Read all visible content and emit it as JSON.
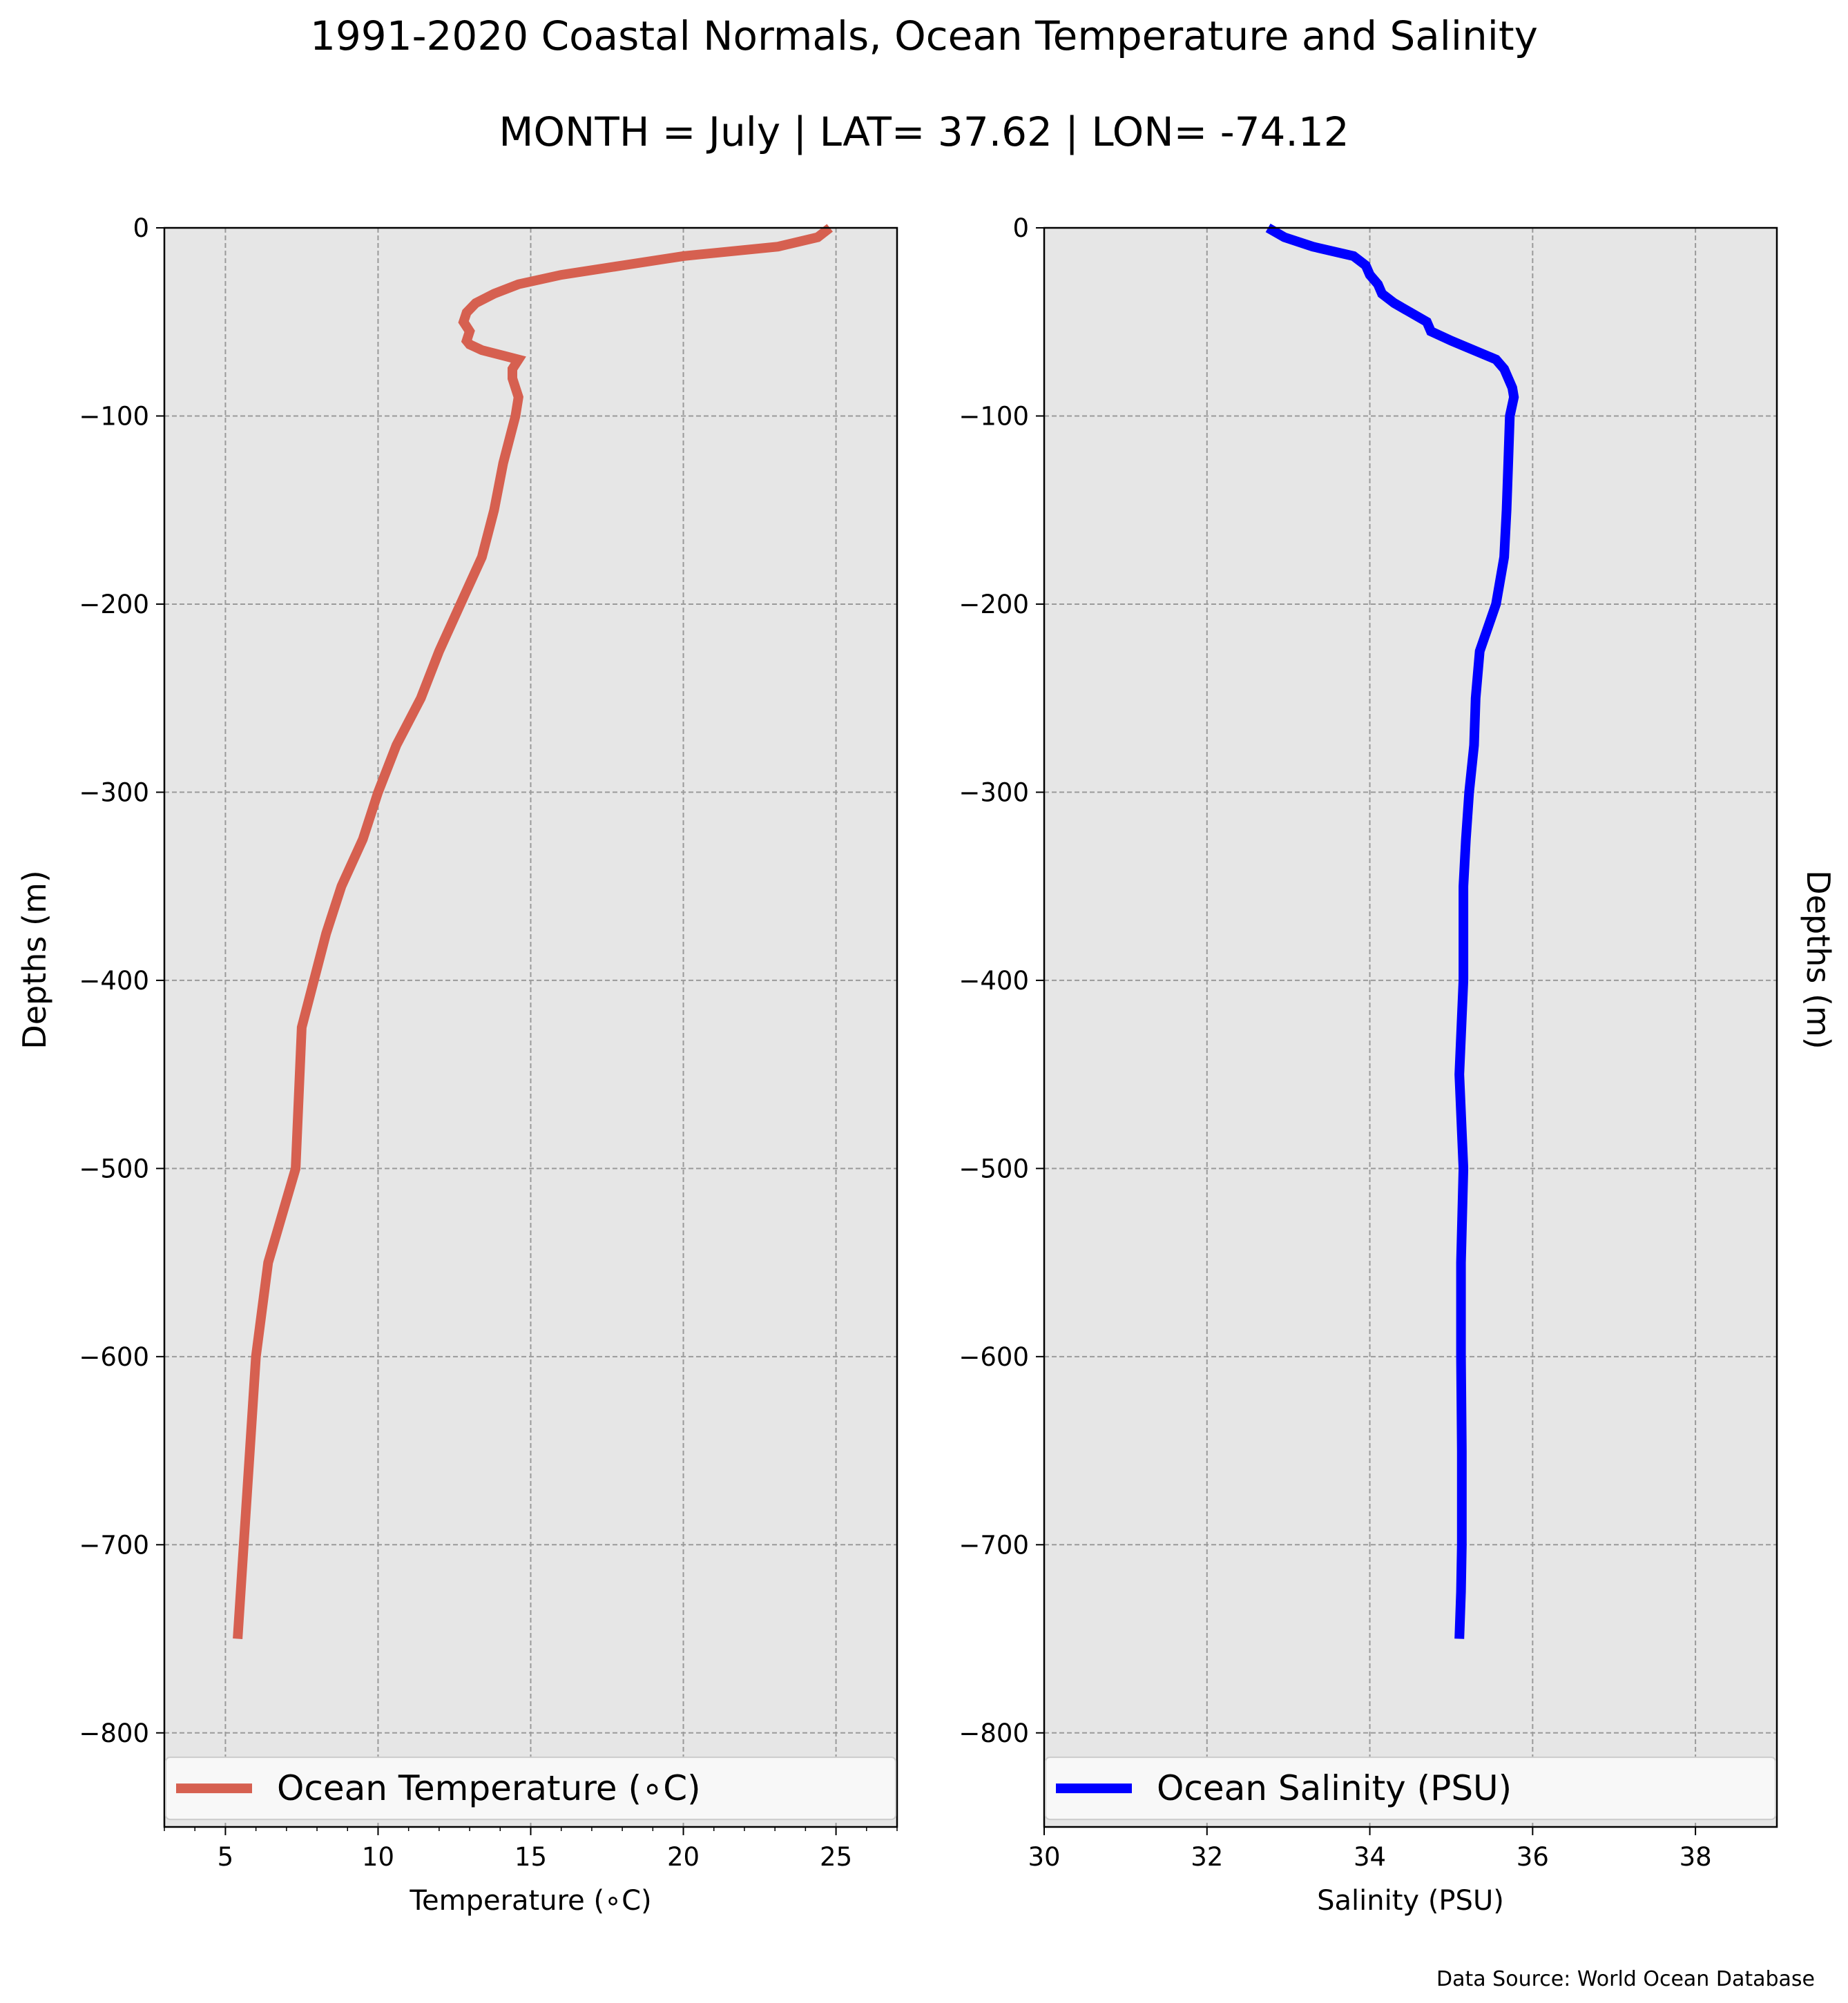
{
  "title": "1991-2020 Coastal Normals, Ocean Temperature and Salinity",
  "subtitle": "MONTH = July | LAT= 37.62 | LON= -74.12",
  "source": "Data Source: World Ocean Database",
  "chart_data": [
    {
      "type": "line",
      "orientation": "profile",
      "xlabel": "Temperature ($^\\circ$C)",
      "xlabel_display": "Temperature (∘C)",
      "ylabel": "Depths (m)",
      "xlim": [
        3,
        27
      ],
      "ylim": [
        -850,
        0
      ],
      "xticks": [
        5,
        10,
        15,
        20,
        25
      ],
      "xtick_labels": [
        "5",
        "10",
        "15",
        "20",
        "25"
      ],
      "yticks": [
        0,
        -100,
        -200,
        -300,
        -400,
        -500,
        -600,
        -700,
        -800
      ],
      "ytick_labels": [
        "0",
        "−100",
        "−200",
        "−300",
        "−400",
        "−500",
        "−600",
        "−700",
        "−800"
      ],
      "grid": true,
      "legend_position": "bottom",
      "series": [
        {
          "name": "Ocean Temperature (∘C)",
          "color": "#d66050",
          "x": [
            24.8,
            24.4,
            23.1,
            20.0,
            18.0,
            16.0,
            14.6,
            13.8,
            13.2,
            12.9,
            12.8,
            13.0,
            12.9,
            13.0,
            13.4,
            14.6,
            14.4,
            14.4,
            14.5,
            14.6,
            14.5,
            14.1,
            13.8,
            13.4,
            12.7,
            12.0,
            11.4,
            10.6,
            10.0,
            9.5,
            8.8,
            8.3,
            7.9,
            7.5,
            7.3,
            6.4,
            6.0,
            5.8,
            5.6,
            5.4
          ],
          "y": [
            0,
            -5,
            -10,
            -15,
            -20,
            -25,
            -30,
            -35,
            -40,
            -45,
            -50,
            -55,
            -60,
            -62,
            -65,
            -70,
            -75,
            -80,
            -85,
            -90,
            -100,
            -125,
            -150,
            -175,
            -200,
            -225,
            -250,
            -275,
            -300,
            -325,
            -350,
            -375,
            -400,
            -425,
            -500,
            -550,
            -600,
            -650,
            -700,
            -750
          ]
        }
      ]
    },
    {
      "type": "line",
      "orientation": "profile",
      "xlabel": "Salinity (PSU)",
      "ylabel": "Depths (m)",
      "xlim": [
        30,
        39
      ],
      "ylim": [
        -850,
        0
      ],
      "xticks": [
        30,
        32,
        34,
        36,
        38
      ],
      "xtick_labels": [
        "30",
        "32",
        "34",
        "36",
        "38"
      ],
      "yticks": [
        0,
        -100,
        -200,
        -300,
        -400,
        -500,
        -600,
        -700,
        -800
      ],
      "ytick_labels": [
        "0",
        "−100",
        "−200",
        "−300",
        "−400",
        "−500",
        "−600",
        "−700",
        "−800"
      ],
      "grid": true,
      "legend_position": "bottom",
      "series": [
        {
          "name": "Ocean Salinity (PSU)",
          "color": "#0000ff",
          "x": [
            32.75,
            32.95,
            33.3,
            33.8,
            33.95,
            34.0,
            34.1,
            34.15,
            34.3,
            34.5,
            34.7,
            34.75,
            35.0,
            35.55,
            35.65,
            35.7,
            35.75,
            35.77,
            35.72,
            35.7,
            35.68,
            35.65,
            35.55,
            35.35,
            35.3,
            35.28,
            35.22,
            35.18,
            35.15,
            35.15,
            35.1,
            35.15,
            35.12,
            35.12,
            35.13,
            35.13,
            35.12,
            35.1
          ],
          "y": [
            0,
            -5,
            -10,
            -15,
            -20,
            -25,
            -30,
            -35,
            -40,
            -45,
            -50,
            -55,
            -60,
            -70,
            -75,
            -80,
            -85,
            -90,
            -100,
            -125,
            -150,
            -175,
            -200,
            -225,
            -250,
            -275,
            -300,
            -325,
            -350,
            -400,
            -450,
            -500,
            -550,
            -600,
            -650,
            -700,
            -725,
            -750
          ]
        }
      ]
    }
  ]
}
